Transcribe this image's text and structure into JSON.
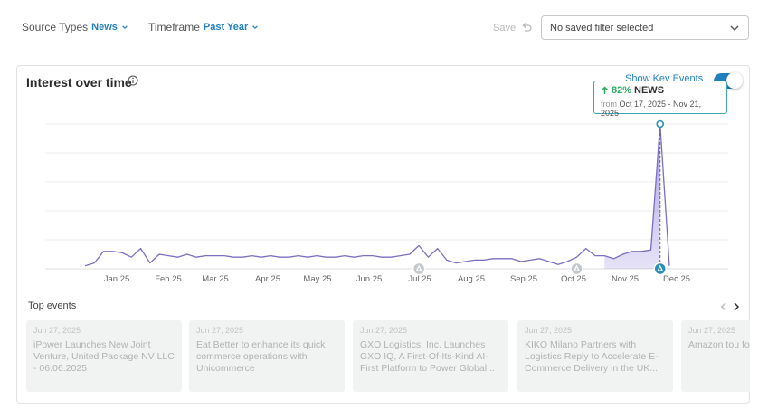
{
  "filters": {
    "source_types_label": "Source Types",
    "source_types_value": "News",
    "timeframe_label": "Timeframe",
    "timeframe_value": "Past Year",
    "save_label": "Save",
    "saved_filter_placeholder": "No saved filter selected"
  },
  "card": {
    "title": "Interest over time",
    "show_key_events_label": "Show Key Events",
    "show_key_events_on": true
  },
  "tooltip": {
    "percent": "82%",
    "source": "NEWS",
    "from_label": "from",
    "range": "Oct 17, 2025 - Nov 21, 2025"
  },
  "chart_data": {
    "type": "line",
    "x_ticks": [
      "Jan 25",
      "Feb 25",
      "Mar 25",
      "Apr 25",
      "May 25",
      "Jun 25",
      "Jul 25",
      "Aug 25",
      "Sep 25",
      "Oct 25",
      "Nov 25",
      "Dec 25"
    ],
    "series": [
      {
        "values": [
          2,
          4,
          12,
          12,
          11,
          8,
          14,
          4,
          10,
          9,
          8,
          10,
          8,
          9,
          9,
          9,
          8,
          8,
          9,
          8,
          9,
          8,
          8,
          9,
          8,
          9,
          8,
          8,
          9,
          8,
          9,
          9,
          8,
          8,
          9,
          10,
          16,
          8,
          14,
          6,
          4,
          5,
          6,
          6,
          7,
          7,
          7,
          5,
          6,
          7,
          5,
          3,
          5,
          8,
          14,
          9,
          9,
          7,
          10,
          12,
          12,
          13,
          100,
          2
        ]
      }
    ],
    "highlight": {
      "start_index": 56,
      "end_index": 62,
      "peak_index": 62
    },
    "key_event_markers": [
      {
        "index": 36,
        "active": false
      },
      {
        "index": 53,
        "active": false
      },
      {
        "index": 62,
        "active": true
      }
    ],
    "grid": true,
    "colors": {
      "line": "#7b6fc2",
      "fill": "#9b8fe0",
      "accent": "#1f7fbf",
      "marker_active": "#2a8fb6",
      "marker_inactive": "#c4c8cc"
    }
  },
  "top_events": {
    "label": "Top events",
    "items": [
      {
        "date": "Jun 27, 2025",
        "title": "iPower Launches New Joint Venture, United Package NV LLC - 06.06.2025"
      },
      {
        "date": "Jun 27, 2025",
        "title": "Eat Better to enhance its quick commerce operations with Unicommerce"
      },
      {
        "date": "Jun 27, 2025",
        "title": "GXO Logistics, Inc. Launches GXO IQ, A First-Of-Its-Kind AI-First Platform to Power Global..."
      },
      {
        "date": "Jun 27, 2025",
        "title": "KIKO Milano Partners with Logistics Reply to Accelerate E-Commerce Delivery in the UK..."
      },
      {
        "date": "Jun 27, 2025",
        "title": "Amazon tou forecasting, robotics"
      }
    ]
  }
}
